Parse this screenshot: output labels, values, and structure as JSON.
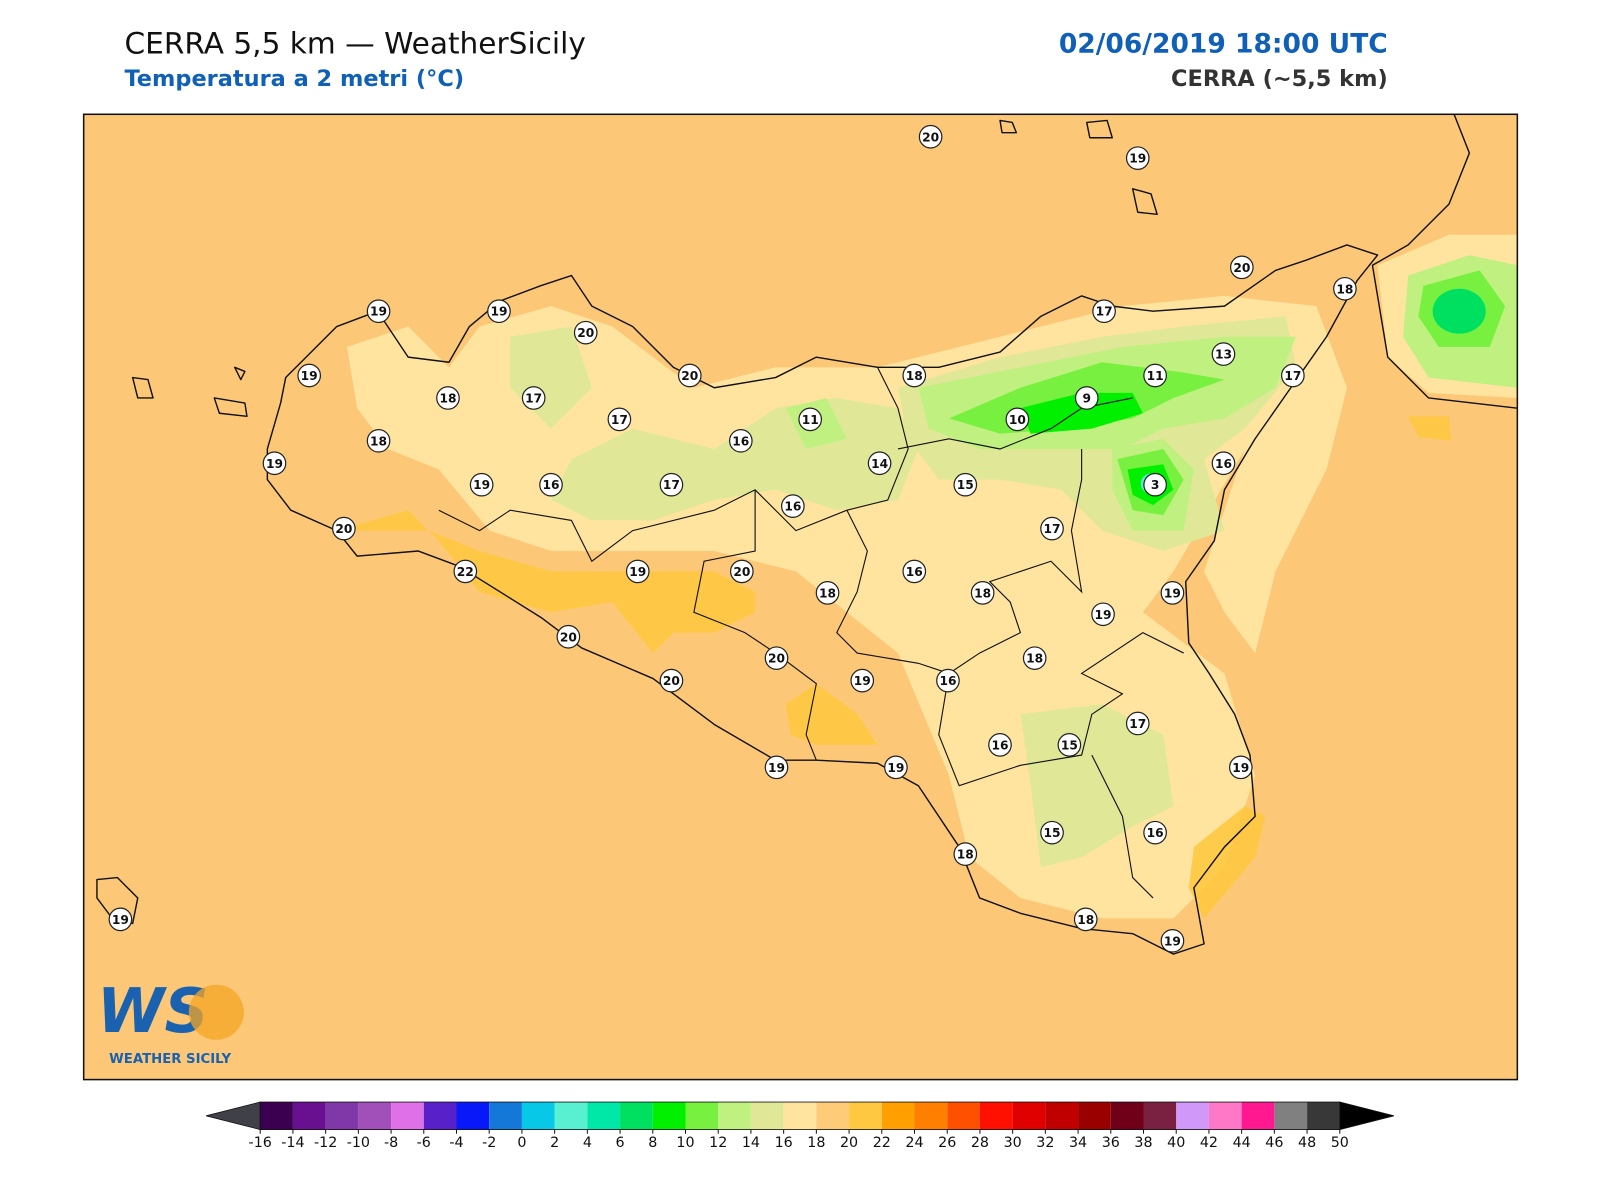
{
  "header": {
    "title": "CERRA 5,5 km — WeatherSicily",
    "subtitle": "Temperatura a 2 metri (°C)",
    "datetime": "02/06/2019 18:00 UTC",
    "model": "CERRA (~5,5 km)"
  },
  "map": {
    "background_color": "#fcc877",
    "stations": [
      20,
      19,
      20,
      18,
      19,
      19,
      20,
      17,
      13,
      19,
      20,
      18,
      11,
      17,
      18,
      17,
      9,
      17,
      11,
      10,
      18,
      16,
      19,
      14,
      16,
      19,
      16,
      17,
      15,
      3,
      16,
      20,
      17,
      22,
      19,
      20,
      16,
      18,
      18,
      19,
      19,
      20,
      18,
      20,
      20,
      19,
      16,
      17,
      16,
      15,
      19,
      19,
      19,
      15,
      16,
      18,
      19,
      18,
      19
    ]
  },
  "logo": {
    "mark": "WS",
    "name": "WEATHER SICILY"
  },
  "colorbar": {
    "ticks": [
      -16,
      -14,
      -12,
      -10,
      -8,
      -6,
      -4,
      -2,
      0,
      2,
      4,
      6,
      8,
      10,
      12,
      14,
      16,
      18,
      20,
      22,
      24,
      26,
      28,
      30,
      32,
      34,
      36,
      38,
      40,
      42,
      44,
      46,
      48,
      50
    ],
    "colors": [
      "#3c0050",
      "#681090",
      "#8038a8",
      "#a050b8",
      "#e070e8",
      "#5820c8",
      "#0818f8",
      "#1478d8",
      "#08c8e8",
      "#58f0d0",
      "#00e8a8",
      "#00e060",
      "#00f000",
      "#78f040",
      "#c0f080",
      "#e0e898",
      "#ffe4a0",
      "#fecb78",
      "#fec840",
      "#ffa000",
      "#ff8000",
      "#ff5000",
      "#ff1000",
      "#e00000",
      "#c00000",
      "#9a0000",
      "#700018",
      "#7a2040",
      "#d098f8",
      "#ff78c8",
      "#ff1890",
      "#808080",
      "#383838"
    ],
    "under_color": "#404048",
    "over_color": "#000000"
  }
}
